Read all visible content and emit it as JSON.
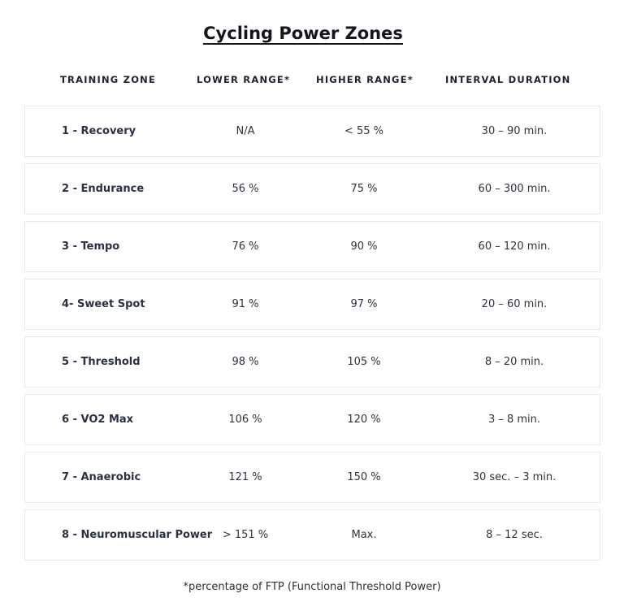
{
  "title": "Cycling Power Zones",
  "headers": {
    "zone": "TRAINING ZONE",
    "lower": "LOWER RANGE*",
    "higher": "HIGHER RANGE*",
    "duration": "INTERVAL DURATION"
  },
  "rows": [
    {
      "zone": "1 - Recovery",
      "lower": "N/A",
      "higher": "< 55 %",
      "duration": "30 – 90 min."
    },
    {
      "zone": "2 - Endurance",
      "lower": "56 %",
      "higher": "75 %",
      "duration": "60 – 300 min."
    },
    {
      "zone": "3 - Tempo",
      "lower": "76 %",
      "higher": "90 %",
      "duration": "60 – 120 min."
    },
    {
      "zone": "4- Sweet Spot",
      "lower": "91 %",
      "higher": "97 %",
      "duration": "20 – 60 min."
    },
    {
      "zone": "5 - Threshold",
      "lower": "98 %",
      "higher": "105 %",
      "duration": "8 – 20 min."
    },
    {
      "zone": "6 - VO2 Max",
      "lower": "106 %",
      "higher": "120 %",
      "duration": "3 – 8 min."
    },
    {
      "zone": "7 - Anaerobic",
      "lower": "121 %",
      "higher": "150 %",
      "duration": "30 sec. – 3 min."
    },
    {
      "zone": "8 - Neuromuscular Power",
      "lower": "> 151 %",
      "higher": "Max.",
      "duration": "8 – 12 sec."
    }
  ],
  "footnote": "*percentage of FTP (Functional Threshold Power)"
}
